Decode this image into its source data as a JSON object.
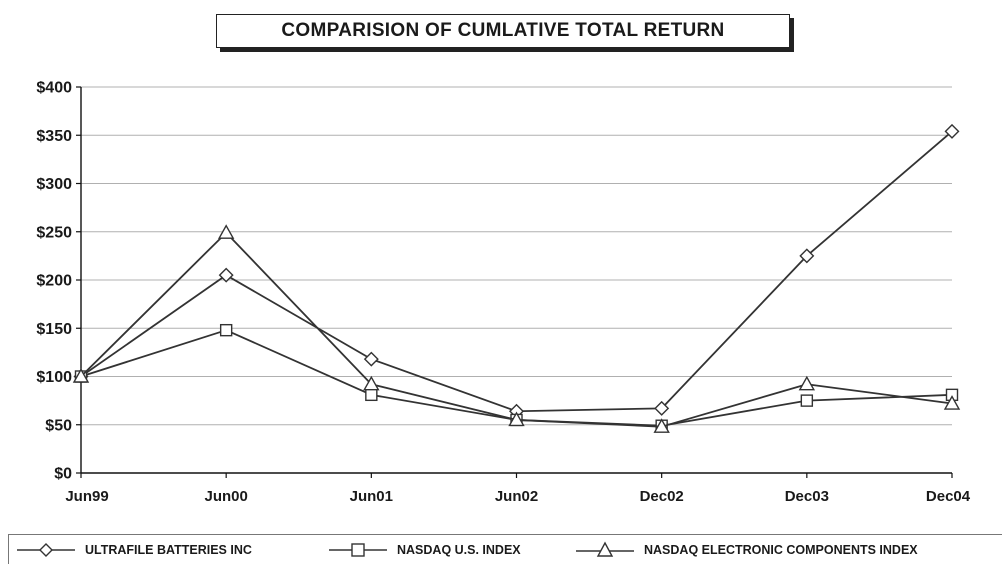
{
  "chart_data": {
    "type": "line",
    "title": "COMPARISION OF CUMLATIVE TOTAL RETURN",
    "categories": [
      "Jun99",
      "Jun00",
      "Jun01",
      "Jun02",
      "Dec02",
      "Dec03",
      "Dec04"
    ],
    "ylim": [
      0,
      400
    ],
    "yticks": [
      "$0",
      "$50",
      "$100",
      "$150",
      "$200",
      "$250",
      "$300",
      "$350",
      "$400"
    ],
    "ytick_values": [
      0,
      50,
      100,
      150,
      200,
      250,
      300,
      350,
      400
    ],
    "grid": true,
    "legend_position": "bottom",
    "series": [
      {
        "name": "ULTRAFILE BATTERIES INC",
        "marker": "diamond",
        "values": [
          100,
          205,
          118,
          64,
          67,
          225,
          354
        ]
      },
      {
        "name": "NASDAQ U.S. INDEX",
        "marker": "square",
        "values": [
          100,
          148,
          81,
          55,
          49,
          75,
          81
        ]
      },
      {
        "name": "NASDAQ ELECTRONIC COMPONENTS INDEX",
        "marker": "triangle",
        "values": [
          100,
          249,
          92,
          55,
          48,
          92,
          72
        ]
      }
    ]
  },
  "colors": {
    "line": "#333333",
    "grid": "#b0b0b0",
    "axis": "#111111"
  }
}
